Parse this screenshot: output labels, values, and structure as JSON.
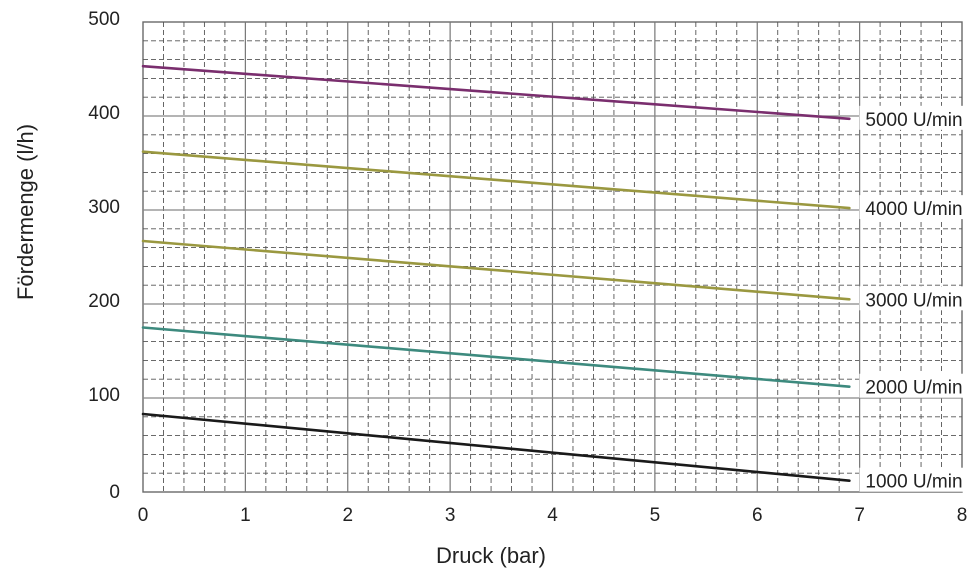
{
  "chart_data": {
    "type": "line",
    "title": "",
    "xlabel": "Druck (bar)",
    "ylabel": "Fördermenge (l/h)",
    "xlim": [
      0,
      8
    ],
    "ylim": [
      0,
      500
    ],
    "xticks": [
      "0",
      "1",
      "2",
      "3",
      "4",
      "5",
      "6",
      "7",
      "8"
    ],
    "yticks": [
      "0",
      "100",
      "200",
      "300",
      "400",
      "500"
    ],
    "grid": true,
    "series": [
      {
        "name": "5000 U/min",
        "color": "#7a2e6e",
        "x": [
          0,
          6.9
        ],
        "y": [
          453,
          397
        ]
      },
      {
        "name": "4000 U/min",
        "color": "#9a9840",
        "x": [
          0,
          6.9
        ],
        "y": [
          362,
          302
        ]
      },
      {
        "name": "3000 U/min",
        "color": "#9a9840",
        "x": [
          0,
          6.9
        ],
        "y": [
          267,
          205
        ]
      },
      {
        "name": "2000 U/min",
        "color": "#3d8a7e",
        "x": [
          0,
          6.9
        ],
        "y": [
          175,
          112
        ]
      },
      {
        "name": "1000 U/min",
        "color": "#1a1a1a",
        "x": [
          0,
          6.9
        ],
        "y": [
          83,
          12
        ]
      }
    ]
  }
}
